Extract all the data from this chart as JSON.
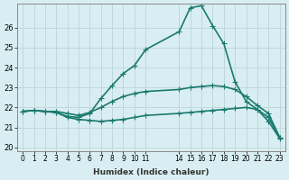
{
  "xlabel": "Humidex (Indice chaleur)",
  "ylabel": "",
  "background_color": "#d9eef2",
  "grid_color": "#c0d8dc",
  "line_color": "#1a7a6e",
  "xlim": [
    -0.5,
    23.5
  ],
  "ylim": [
    19.8,
    27.2
  ],
  "yticks": [
    20,
    21,
    22,
    23,
    24,
    25,
    26
  ],
  "xtick_positions": [
    0,
    1,
    2,
    3,
    4,
    5,
    6,
    7,
    8,
    9,
    10,
    11,
    14,
    15,
    16,
    17,
    18,
    19,
    20,
    21,
    22,
    23
  ],
  "xtick_labels": [
    "0",
    "1",
    "2",
    "3",
    "4",
    "5",
    "6",
    "7",
    "8",
    "9",
    "10",
    "11",
    "14",
    "15",
    "16",
    "17",
    "18",
    "19",
    "20",
    "21",
    "22",
    "23"
  ],
  "line1_x": [
    0,
    1,
    2,
    3,
    4,
    5,
    6,
    7,
    8,
    9,
    10,
    11,
    14,
    15,
    16,
    17,
    18,
    19,
    20,
    21,
    22,
    23
  ],
  "line1_y": [
    21.8,
    21.85,
    21.8,
    21.75,
    21.5,
    21.4,
    21.35,
    21.3,
    21.35,
    21.4,
    21.5,
    21.6,
    21.7,
    21.75,
    21.8,
    21.85,
    21.9,
    21.95,
    22.0,
    21.9,
    21.5,
    20.5
  ],
  "line2_x": [
    0,
    1,
    2,
    3,
    4,
    5,
    6,
    7,
    8,
    9,
    10,
    11,
    14,
    15,
    16,
    17,
    18,
    19,
    20,
    21,
    22,
    23
  ],
  "line2_y": [
    21.8,
    21.85,
    21.8,
    21.8,
    21.7,
    21.6,
    21.75,
    22.0,
    22.3,
    22.55,
    22.7,
    22.8,
    22.9,
    23.0,
    23.05,
    23.1,
    23.05,
    22.9,
    22.55,
    22.1,
    21.7,
    20.5
  ],
  "line3_x": [
    0,
    1,
    2,
    3,
    4,
    5,
    6,
    7,
    8,
    9,
    10,
    11,
    14,
    15,
    16,
    17,
    18,
    19,
    20,
    21,
    22,
    23
  ],
  "line3_y": [
    21.8,
    21.85,
    21.8,
    21.75,
    21.55,
    21.5,
    21.7,
    22.45,
    23.1,
    23.7,
    24.1,
    24.9,
    25.8,
    27.0,
    27.1,
    26.1,
    25.2,
    23.3,
    22.3,
    21.9,
    21.3,
    20.45
  ],
  "marker": "+",
  "markersize": 4,
  "linewidth": 1.2
}
